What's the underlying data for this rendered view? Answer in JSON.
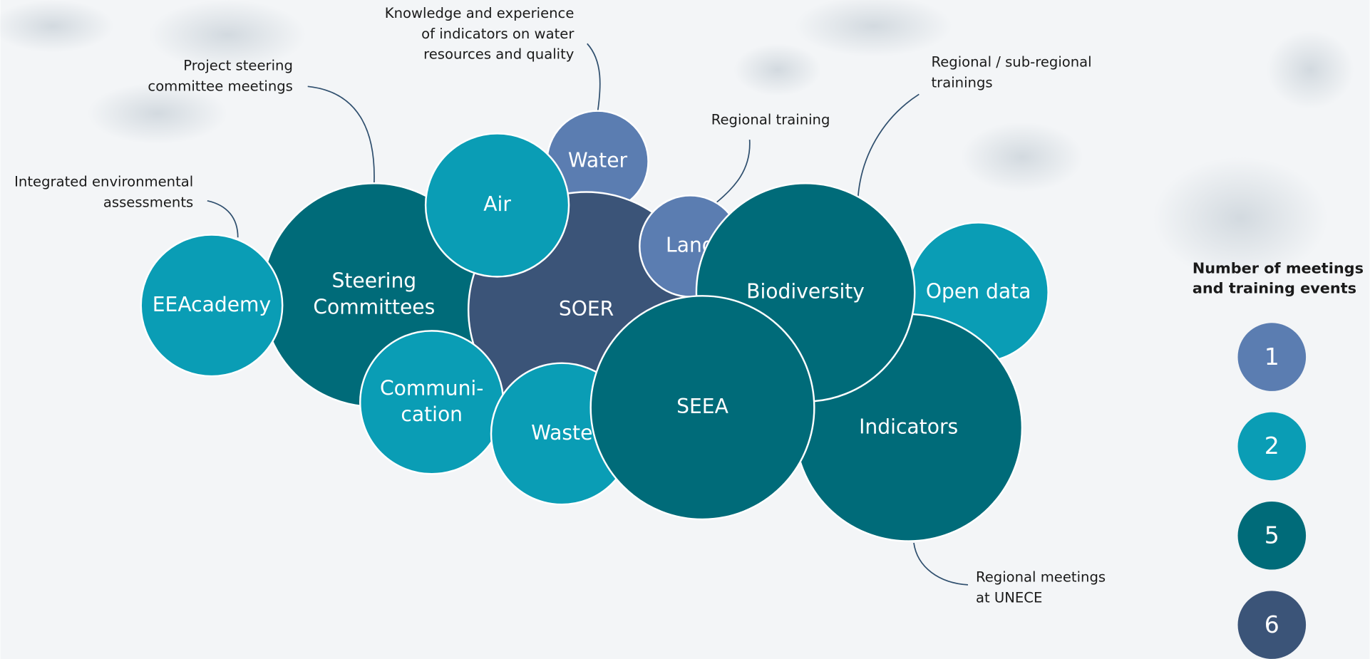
{
  "legend": {
    "title": [
      "Number of meetings",
      "and training events"
    ],
    "items": [
      {
        "value": 1,
        "color": "#5b7db1"
      },
      {
        "value": 2,
        "color": "#0a9db5"
      },
      {
        "value": 5,
        "color": "#006b79"
      },
      {
        "value": 6,
        "color": "#3b5478"
      }
    ]
  },
  "bubbles": [
    {
      "label": [
        "Steering",
        "Committees"
      ],
      "count": 5
    },
    {
      "label": [
        "Water"
      ],
      "count": 1
    },
    {
      "label": [
        "SOER"
      ],
      "count": 6
    },
    {
      "label": [
        "Air"
      ],
      "count": 2
    },
    {
      "label": [
        "Land"
      ],
      "count": 1
    },
    {
      "label": [
        "Open data"
      ],
      "count": 2
    },
    {
      "label": [
        "Indicators"
      ],
      "count": 5
    },
    {
      "label": [
        "Biodiversity"
      ],
      "count": 5
    },
    {
      "label": [
        "Communi-",
        "cation"
      ],
      "count": 2
    },
    {
      "label": [
        "Waste"
      ],
      "count": 2
    },
    {
      "label": [
        "SEEA"
      ],
      "count": 5
    },
    {
      "label": [
        "EEAcademy"
      ],
      "count": 2
    }
  ],
  "annotations": [
    {
      "lines": [
        "Knowledge and experience",
        "of indicators on water",
        "resources and quality"
      ]
    },
    {
      "lines": [
        "Project steering",
        "committee meetings"
      ]
    },
    {
      "lines": [
        "Integrated environmental",
        "assessments"
      ]
    },
    {
      "lines": [
        "Regional training"
      ]
    },
    {
      "lines": [
        "Regional / sub-regional",
        "trainings"
      ]
    },
    {
      "lines": [
        "Regional meetings",
        "at UNECE"
      ]
    }
  ]
}
